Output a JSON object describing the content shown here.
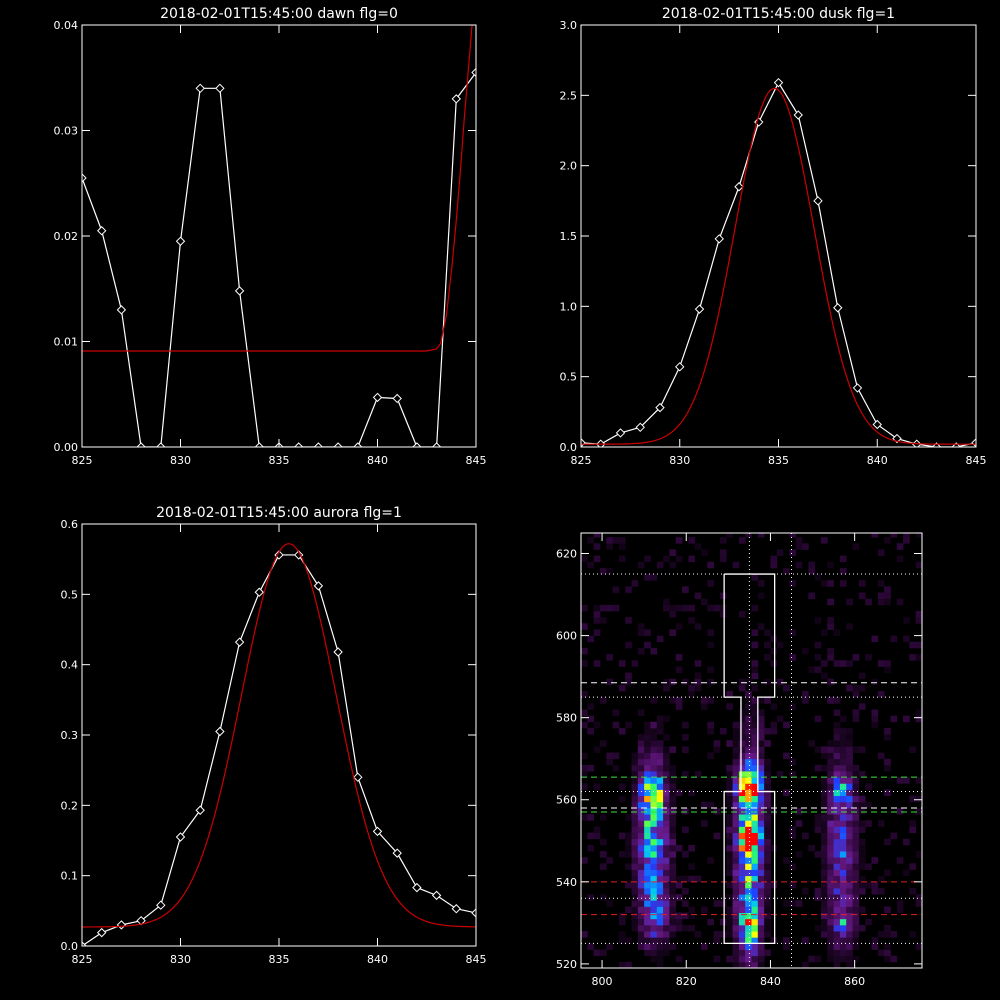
{
  "chart_data": [
    {
      "id": "dawn",
      "type": "line",
      "title": "2018-02-01T15:45:00 dawn flg=0",
      "xlim": [
        825,
        845
      ],
      "ylim": [
        0,
        0.04
      ],
      "xticks": [
        825,
        830,
        835,
        840,
        845
      ],
      "yticks": [
        0,
        0.01,
        0.02,
        0.03,
        0.04
      ],
      "ytick_labels": [
        "0.00",
        "0.01",
        "0.02",
        "0.03",
        "0.04"
      ],
      "series": [
        {
          "kind": "data",
          "color": "#ffffff",
          "marker": "diamond",
          "x": [
            825,
            826,
            827,
            828,
            829,
            830,
            831,
            832,
            833,
            834,
            835,
            836,
            837,
            838,
            839,
            840,
            841,
            842,
            843,
            844,
            845
          ],
          "y": [
            0.0255,
            0.0205,
            0.013,
            0.0,
            0.0,
            0.0195,
            0.034,
            0.034,
            0.0148,
            0.0,
            0.0,
            0.0,
            0.0,
            0.0,
            0.0,
            0.0047,
            0.0046,
            0.0,
            0.0,
            0.033,
            0.0355
          ]
        },
        {
          "kind": "fit",
          "color": "#cc0000",
          "x": [
            825,
            842.0,
            842.5,
            843.0,
            843.2,
            843.5,
            843.8,
            844.0,
            844.2,
            844.4,
            844.6,
            844.8,
            845
          ],
          "y": [
            0.0091,
            0.0091,
            0.0091,
            0.0093,
            0.0098,
            0.0125,
            0.0175,
            0.0215,
            0.026,
            0.031,
            0.0355,
            0.04,
            0.042
          ]
        }
      ]
    },
    {
      "id": "dusk",
      "type": "line",
      "title": "2018-02-01T15:45:00 dusk flg=1",
      "xlim": [
        825,
        845
      ],
      "ylim": [
        0,
        3.0
      ],
      "xticks": [
        825,
        830,
        835,
        840,
        845
      ],
      "yticks": [
        0,
        0.5,
        1.0,
        1.5,
        2.0,
        2.5,
        3.0
      ],
      "ytick_labels": [
        "0.0",
        "0.5",
        "1.0",
        "1.5",
        "2.0",
        "2.5",
        "3.0"
      ],
      "series": [
        {
          "kind": "data",
          "color": "#ffffff",
          "marker": "diamond",
          "x": [
            825,
            826,
            827,
            828,
            829,
            830,
            831,
            832,
            833,
            834,
            835,
            836,
            837,
            838,
            839,
            840,
            841,
            842,
            843,
            844,
            845
          ],
          "y": [
            0.03,
            0.02,
            0.1,
            0.14,
            0.28,
            0.57,
            0.98,
            1.48,
            1.85,
            2.31,
            2.59,
            2.36,
            1.75,
            0.99,
            0.42,
            0.16,
            0.06,
            0.02,
            0.0,
            0.0,
            0.03
          ]
        },
        {
          "kind": "fit",
          "color": "#cc0000",
          "model": "gaussian",
          "amplitude": 2.53,
          "center": 834.8,
          "sigma": 2.0,
          "offset": 0.02
        }
      ]
    },
    {
      "id": "aurora",
      "type": "line",
      "title": "2018-02-01T15:45:00 aurora flg=1",
      "xlim": [
        825,
        845
      ],
      "ylim": [
        0,
        0.6
      ],
      "xticks": [
        825,
        830,
        835,
        840,
        845
      ],
      "yticks": [
        0,
        0.1,
        0.2,
        0.3,
        0.4,
        0.5,
        0.6
      ],
      "ytick_labels": [
        "0.0",
        "0.1",
        "0.2",
        "0.3",
        "0.4",
        "0.5",
        "0.6"
      ],
      "series": [
        {
          "kind": "data",
          "color": "#ffffff",
          "marker": "diamond",
          "x": [
            825,
            826,
            827,
            828,
            829,
            830,
            831,
            832,
            833,
            834,
            835,
            836,
            837,
            838,
            839,
            840,
            841,
            842,
            843,
            844,
            845
          ],
          "y": [
            0.0,
            0.019,
            0.03,
            0.036,
            0.058,
            0.155,
            0.193,
            0.305,
            0.432,
            0.503,
            0.556,
            0.556,
            0.512,
            0.418,
            0.24,
            0.163,
            0.132,
            0.083,
            0.072,
            0.053,
            0.047
          ]
        },
        {
          "kind": "fit",
          "color": "#cc0000",
          "model": "gaussian",
          "amplitude": 0.545,
          "center": 835.5,
          "sigma": 2.4,
          "offset": 0.027
        }
      ]
    },
    {
      "id": "image",
      "type": "heatmap",
      "title": "",
      "xlim": [
        795,
        876
      ],
      "ylim": [
        519,
        625
      ],
      "xticks": [
        800,
        820,
        840,
        860
      ],
      "yticks": [
        520,
        540,
        560,
        580,
        600,
        620
      ],
      "colormap": [
        "#000000",
        "#3a0a4a",
        "#6a1a8a",
        "#2040ff",
        "#00c0ff",
        "#30ff60",
        "#ffff00",
        "#ff8000",
        "#ff0000"
      ],
      "blobs": [
        {
          "x": 812,
          "y": 550,
          "sx": 2.5,
          "sy": 13,
          "amp": 0.5
        },
        {
          "x": 812,
          "y": 562,
          "sx": 1.8,
          "sy": 3,
          "amp": 0.55
        },
        {
          "x": 813,
          "y": 532,
          "sx": 2,
          "sy": 4,
          "amp": 0.3
        },
        {
          "x": 835,
          "y": 546,
          "sx": 2.2,
          "sy": 17,
          "amp": 0.55
        },
        {
          "x": 835,
          "y": 563,
          "sx": 1.8,
          "sy": 3.5,
          "amp": 0.9
        },
        {
          "x": 835,
          "y": 551,
          "sx": 1.6,
          "sy": 3,
          "amp": 0.65
        },
        {
          "x": 835,
          "y": 529,
          "sx": 1.5,
          "sy": 3,
          "amp": 0.5
        },
        {
          "x": 857,
          "y": 548,
          "sx": 2.5,
          "sy": 15,
          "amp": 0.32
        },
        {
          "x": 857,
          "y": 562,
          "sx": 1.5,
          "sy": 2,
          "amp": 0.4
        },
        {
          "x": 857,
          "y": 530,
          "sx": 1.5,
          "sy": 2,
          "amp": 0.35
        }
      ],
      "overlays": {
        "white_dotted_h": [
          615,
          585,
          562,
          536,
          525
        ],
        "white_dotted_v": [
          835,
          845
        ],
        "white_dashed_h": [
          588.5,
          558
        ],
        "green_dashed_h": [
          565.5,
          557
        ],
        "red_dashed_h": [
          540,
          532
        ],
        "white_box": [
          [
            829,
            615
          ],
          [
            841,
            615
          ],
          [
            841,
            585
          ],
          [
            837,
            585
          ],
          [
            837,
            562
          ],
          [
            841,
            562
          ],
          [
            841,
            525
          ],
          [
            829,
            525
          ],
          [
            829,
            562
          ],
          [
            833,
            562
          ],
          [
            833,
            585
          ],
          [
            829,
            585
          ],
          [
            829,
            615
          ]
        ]
      }
    }
  ]
}
